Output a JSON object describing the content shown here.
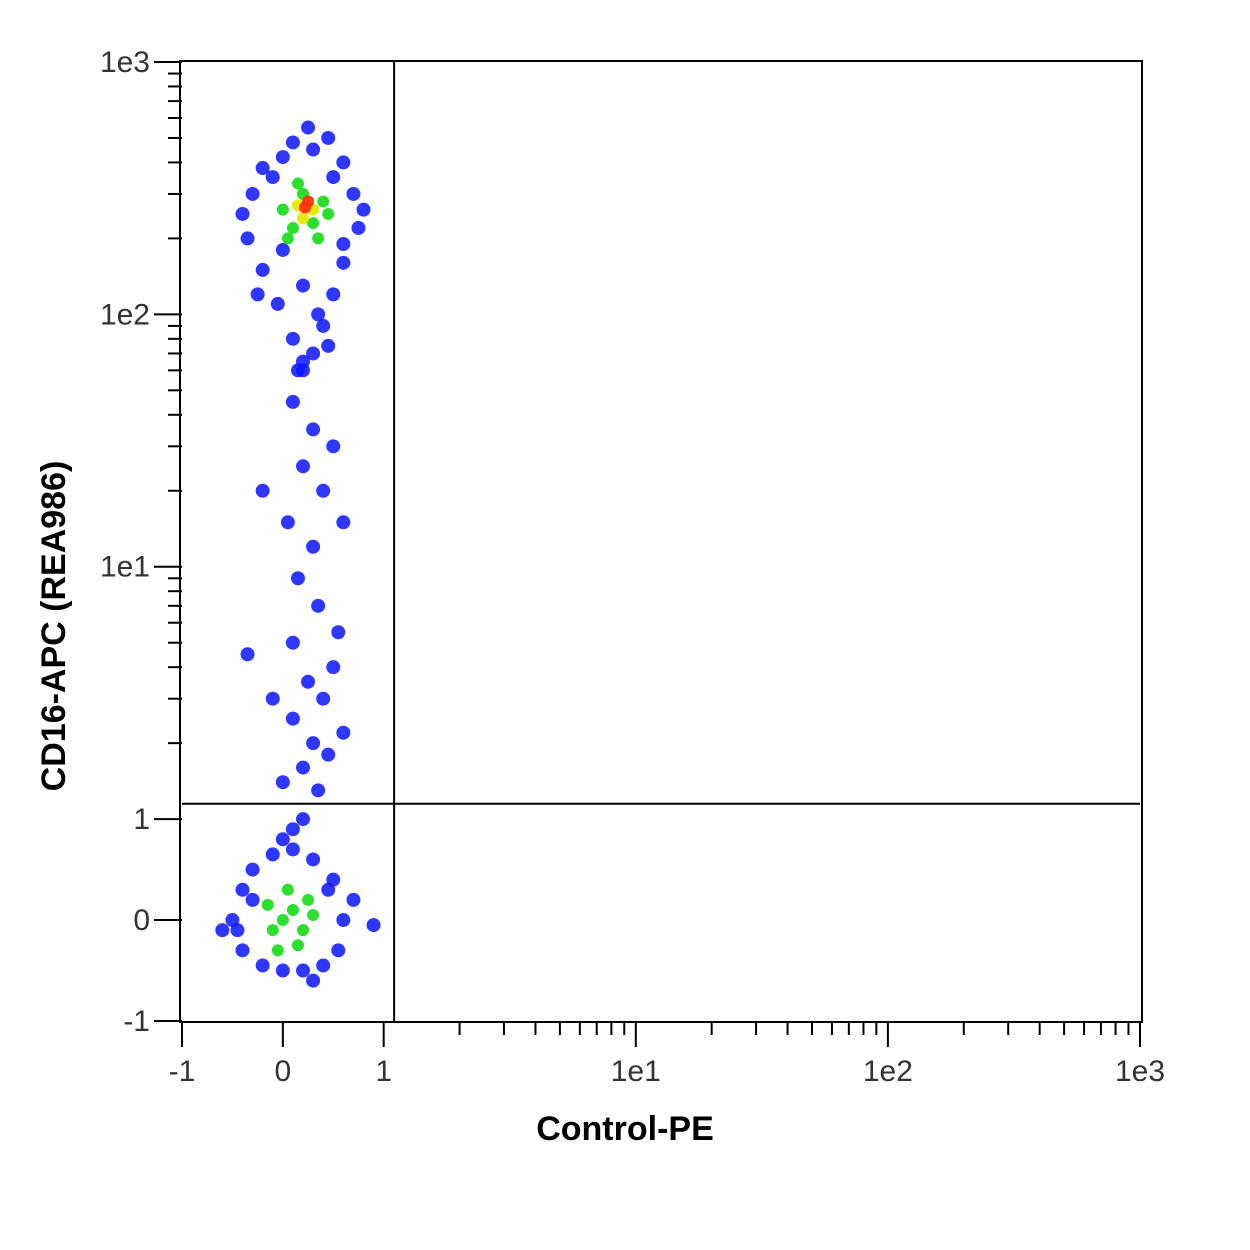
{
  "chart_data": {
    "type": "scatter",
    "x_label": "Control-PE",
    "y_label": "CD16-APC (REA986)",
    "xscale": "biexponential",
    "yscale": "biexponential",
    "xlim": [
      -1,
      1000
    ],
    "ylim": [
      -1,
      1000
    ],
    "xticks": [
      -1,
      0,
      1,
      {
        "value": 10,
        "label": "1e1"
      },
      {
        "value": 100,
        "label": "1e2"
      },
      {
        "value": 1000,
        "label": "1e3"
      }
    ],
    "yticks": [
      -1,
      0,
      1,
      {
        "value": 10,
        "label": "1e1"
      },
      {
        "value": 100,
        "label": "1e2"
      },
      {
        "value": 1000,
        "label": "1e3"
      }
    ],
    "xminorticks": [
      2,
      3,
      4,
      5,
      6,
      7,
      8,
      9,
      20,
      30,
      40,
      50,
      60,
      70,
      80,
      90,
      200,
      300,
      400,
      500,
      600,
      700,
      800,
      900
    ],
    "yminorticks": [
      2,
      3,
      4,
      5,
      6,
      7,
      8,
      9,
      20,
      30,
      40,
      50,
      60,
      70,
      80,
      90,
      200,
      300,
      400,
      500,
      600,
      700,
      800,
      900
    ],
    "gates": {
      "x": 1.1,
      "y": 1.15
    },
    "series": [
      {
        "color": "#0a14ff",
        "x": [
          -0.3,
          -0.2,
          0,
          0.3,
          0.6,
          0.7,
          0.75,
          0.6,
          0.5,
          0.4,
          0.3,
          0.15,
          0.1,
          -0.05,
          -0.2,
          -0.35,
          -0.4,
          0.8,
          0.5,
          -0.1,
          0.2,
          0.35,
          0,
          0.6,
          -0.25,
          0.25,
          0.45,
          0.1,
          0.2,
          0.45,
          0.1,
          0.3,
          0.5,
          0.2,
          0.4,
          0.05,
          0.3,
          0.15,
          0.35,
          0.1,
          0.5,
          0.25,
          0.4,
          0.1,
          0.3,
          0.45,
          0.2,
          -0.35,
          0.55,
          -0.1,
          0.6,
          0,
          0.35,
          -0.2,
          0.6,
          0.2,
          -0.5,
          -0.4,
          -0.3,
          -0.1,
          0.1,
          0.3,
          0.5,
          0.6,
          0.55,
          0.4,
          0.2,
          0,
          -0.2,
          -0.4,
          -0.45,
          0.7,
          0.1,
          0.2,
          0,
          -0.6,
          0.9,
          0.3,
          -0.3,
          0.45
        ],
        "values": [
          300,
          380,
          420,
          450,
          400,
          300,
          220,
          160,
          120,
          90,
          70,
          60,
          80,
          110,
          150,
          200,
          250,
          260,
          350,
          350,
          130,
          100,
          180,
          190,
          120,
          550,
          500,
          480,
          65,
          75,
          45,
          35,
          30,
          25,
          20,
          15,
          12,
          9,
          7,
          5,
          4,
          3.5,
          3,
          2.5,
          2,
          1.8,
          1.6,
          4.5,
          5.5,
          3,
          2.2,
          1.4,
          1.3,
          20,
          15,
          60,
          0,
          0.3,
          0.5,
          0.65,
          0.7,
          0.6,
          0.4,
          0,
          -0.3,
          -0.45,
          -0.5,
          -0.5,
          -0.45,
          -0.3,
          -0.1,
          0.2,
          0.9,
          1,
          0.8,
          -0.1,
          -0.05,
          -0.6,
          0.2,
          0.3
        ]
      },
      {
        "color": "#22dd22",
        "x": [
          0,
          0.2,
          0.4,
          0.1,
          0.3,
          0.15,
          0.35,
          0.05,
          0.45,
          0,
          0.1,
          0.2,
          -0.1,
          0.05,
          0.25,
          -0.15,
          0.15,
          0.3,
          -0.05
        ],
        "values": [
          260,
          300,
          280,
          220,
          230,
          330,
          200,
          200,
          250,
          0,
          0.1,
          -0.1,
          -0.1,
          0.3,
          0.2,
          0.15,
          -0.25,
          0.05,
          -0.3
        ]
      },
      {
        "color": "#e8e800",
        "x": [
          0.15,
          0.3,
          0.2
        ],
        "values": [
          270,
          260,
          240
        ]
      },
      {
        "color": "#ff3000",
        "x": [
          0.22,
          0.25
        ],
        "values": [
          265,
          280
        ]
      }
    ]
  }
}
